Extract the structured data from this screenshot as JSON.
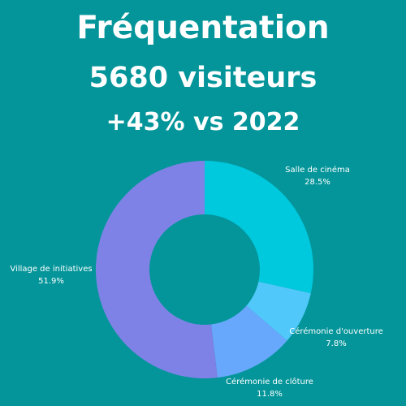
{
  "colors": {
    "background": "#03959A",
    "label_text": "#ffffff"
  },
  "header": {
    "title": "Fréquentation",
    "subtitle": "5680 visiteurs",
    "delta": "+43% vs 2022"
  },
  "chart_data": {
    "type": "pie",
    "donut": true,
    "categories": [
      "Salle de cinéma",
      "Cérémonie d'ouverture",
      "Cérémonie de clôture",
      "Village de initiatives"
    ],
    "values": [
      28.5,
      7.8,
      11.8,
      51.9
    ],
    "value_labels": [
      "28.5%",
      "7.8%",
      "11.8%",
      "51.9%"
    ],
    "colors": [
      "#00C8DD",
      "#50C9FA",
      "#68A8FC",
      "#7E82E6"
    ],
    "legend": "none"
  }
}
